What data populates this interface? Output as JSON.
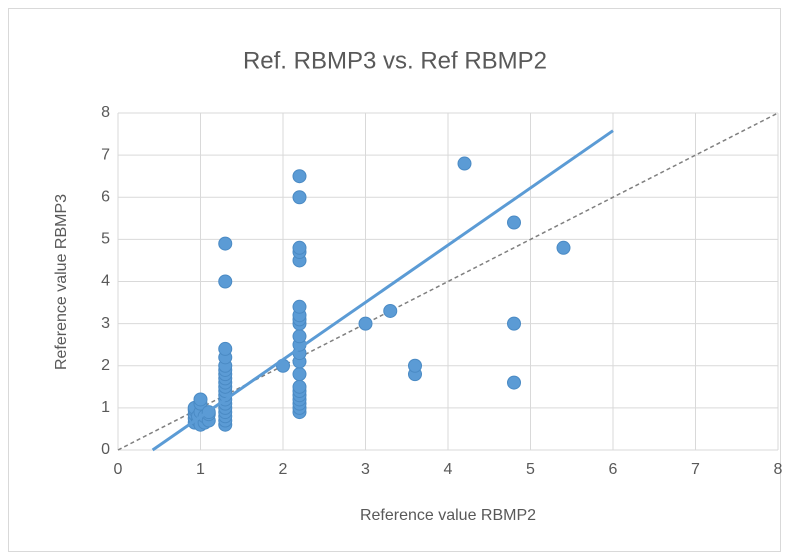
{
  "chart_data": {
    "type": "scatter",
    "title": "Ref. RBMP3 vs. Ref RBMP2",
    "x_label": "Reference value RBMP2",
    "y_label": "Reference value RBMP3",
    "x": [
      0.93,
      0.93,
      0.93,
      0.93,
      0.93,
      0.97,
      0.97,
      1.0,
      1.0,
      1.0,
      1.0,
      1.05,
      1.05,
      1.1,
      1.1,
      1.1,
      1.3,
      1.3,
      1.3,
      1.3,
      1.3,
      1.3,
      1.3,
      1.3,
      1.3,
      1.3,
      1.3,
      1.3,
      1.3,
      1.3,
      1.3,
      1.3,
      1.3,
      1.3,
      1.3,
      2.0,
      2.2,
      2.2,
      2.2,
      2.2,
      2.2,
      2.2,
      2.2,
      2.2,
      2.2,
      2.2,
      2.2,
      2.2,
      2.2,
      2.2,
      2.2,
      2.2,
      2.2,
      2.2,
      2.2,
      2.2,
      2.2,
      3.0,
      3.3,
      3.6,
      3.6,
      4.2,
      4.8,
      4.8,
      4.8,
      5.4
    ],
    "values": [
      0.65,
      0.75,
      0.85,
      0.95,
      1.0,
      0.7,
      0.8,
      0.6,
      0.9,
      1.1,
      1.2,
      0.65,
      0.8,
      0.7,
      0.85,
      0.9,
      0.6,
      0.7,
      0.8,
      0.9,
      1.0,
      1.1,
      1.2,
      1.3,
      1.4,
      1.5,
      1.6,
      1.7,
      1.8,
      1.9,
      2.0,
      2.2,
      2.4,
      4.0,
      4.9,
      2.0,
      0.9,
      1.0,
      1.1,
      1.2,
      1.3,
      1.4,
      1.5,
      1.8,
      2.1,
      2.3,
      2.5,
      2.7,
      3.0,
      3.1,
      3.2,
      3.4,
      4.5,
      4.7,
      4.8,
      6.0,
      6.5,
      3.0,
      3.3,
      1.8,
      2.0,
      6.8,
      1.6,
      3.0,
      5.4,
      4.8
    ],
    "color": "#5b9bd5",
    "trendline": {
      "x": [
        0.42,
        6
      ],
      "values": [
        0,
        7.58
      ],
      "color": "#5b9bd5"
    },
    "reference_line": {
      "x": [
        0,
        8
      ],
      "values": [
        0,
        8
      ],
      "color": "#7f7f7f"
    },
    "xlim": [
      0,
      8
    ],
    "xticks": [
      0,
      1,
      2,
      3,
      4,
      5,
      6,
      7,
      8
    ],
    "ylim": [
      0,
      8
    ],
    "yticks": [
      0,
      1,
      2,
      3,
      4,
      5,
      6,
      7,
      8
    ],
    "grid": true
  }
}
